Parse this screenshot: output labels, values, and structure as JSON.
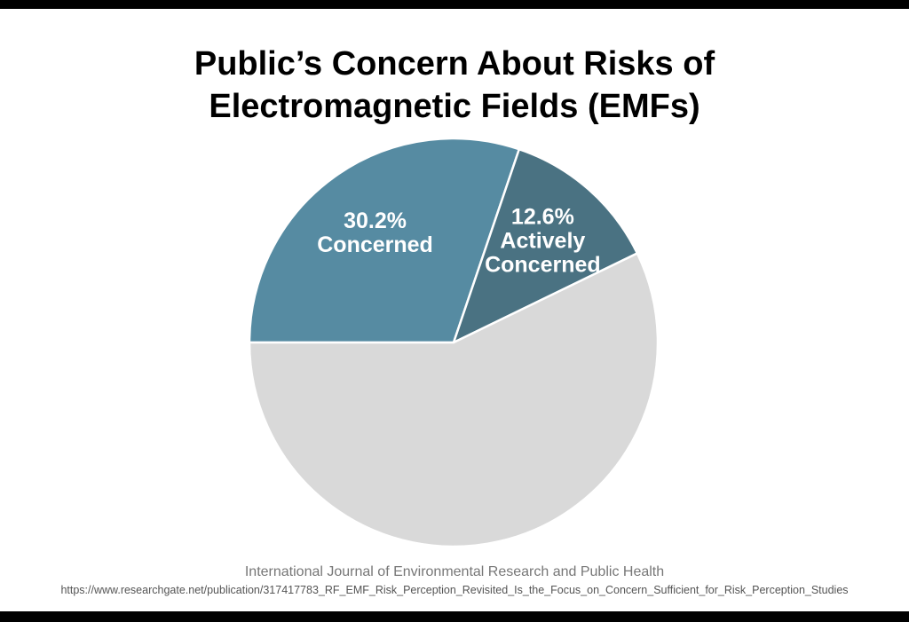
{
  "chart_data": {
    "type": "pie",
    "title": "Public’s Concern About Risks of Electromagnetic Fields (EMFs)",
    "categories": [
      "Concerned",
      "Actively Concerned",
      null
    ],
    "values": [
      30.2,
      12.6,
      57.2
    ],
    "value_labels": [
      "30.2%",
      "12.6%",
      null
    ],
    "colors": [
      "#568ba2",
      "#4a7282",
      "#d9d9d9"
    ],
    "source": "International Journal of Environmental Research and Public Health",
    "source_url": "https://www.researchgate.net/publication/317417783_RF_EMF_Risk_Perception_Revisited_Is_the_Focus_on_Concern_Sufficient_for_Risk_Perception_Studies"
  }
}
